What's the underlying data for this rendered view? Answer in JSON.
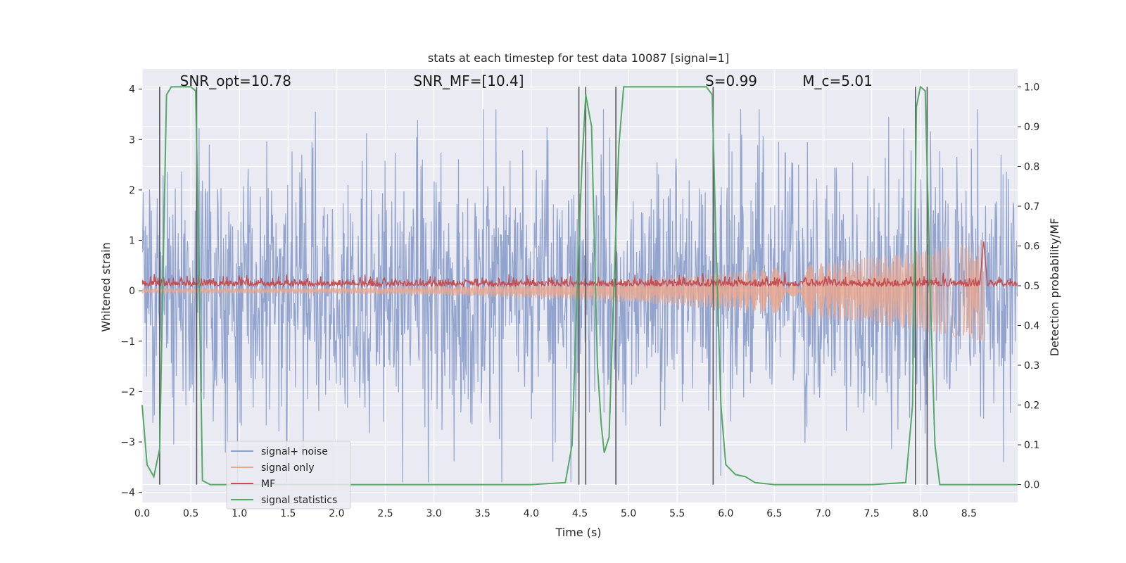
{
  "chart_data": {
    "type": "line",
    "title": "stats at each timestep for test data 10087 [signal=1]",
    "xlabel": "Time (s)",
    "ylabel": "Whitened strain",
    "y2label": "Detection probability/MF",
    "xlim": [
      0,
      9.0
    ],
    "ylim": [
      -4.2,
      4.4
    ],
    "y2lim": [
      -0.045,
      1.045
    ],
    "x_ticks": [
      "0.0",
      "0.5",
      "1.0",
      "1.5",
      "2.0",
      "2.5",
      "3.0",
      "3.5",
      "4.0",
      "4.5",
      "5.0",
      "5.5",
      "6.0",
      "6.5",
      "7.0",
      "7.5",
      "8.0",
      "8.5"
    ],
    "y_ticks": [
      "4",
      "3",
      "2",
      "1",
      "0",
      "−1",
      "−2",
      "−3",
      "−4"
    ],
    "y2_ticks": [
      "1.0",
      "0.9",
      "0.8",
      "0.7",
      "0.6",
      "0.5",
      "0.4",
      "0.3",
      "0.2",
      "0.1",
      "0.0"
    ],
    "annotations": [
      {
        "id": "snr-opt",
        "text": "SNR_opt=10.78",
        "x": 0.2
      },
      {
        "id": "snr-mf",
        "text": "SNR_MF=[10.4]",
        "x": 2.6
      },
      {
        "id": "s-stat",
        "text": "S=0.99",
        "x": 5.6
      },
      {
        "id": "mc",
        "text": "M_c=5.01",
        "x": 6.6
      }
    ],
    "legend_position": "lower-left",
    "grid": true,
    "series": [
      {
        "name": "signal+ noise",
        "color": "#8da0cb",
        "axis": "left",
        "amplitude_range": [
          -3.8,
          3.6
        ]
      },
      {
        "name": "signal only",
        "color": "#e8a78f",
        "axis": "left",
        "x_start": 0.0,
        "x_end": 8.65,
        "envelope_start": 0.05,
        "envelope_end": 1.0
      },
      {
        "name": "MF",
        "color": "#c44e52",
        "axis": "left",
        "baseline": 0.12,
        "spike_x": 8.65,
        "spike_y": 1.0
      },
      {
        "name": "signal statistics",
        "color": "#55a868",
        "axis": "right",
        "x": [
          0.0,
          0.05,
          0.12,
          0.18,
          0.25,
          0.3,
          0.35,
          0.45,
          0.5,
          0.55,
          0.58,
          0.62,
          0.7,
          1.0,
          2.0,
          3.0,
          4.0,
          4.35,
          4.42,
          4.48,
          4.52,
          4.56,
          4.62,
          4.68,
          4.72,
          4.75,
          4.8,
          4.85,
          4.9,
          4.95,
          5.0,
          5.5,
          5.8,
          5.86,
          5.9,
          5.95,
          6.0,
          6.1,
          6.2,
          6.3,
          6.5,
          7.0,
          7.5,
          7.85,
          7.92,
          7.96,
          8.0,
          8.05,
          8.1,
          8.15,
          8.2,
          8.5,
          9.0
        ],
        "y": [
          0.2,
          0.05,
          0.02,
          0.09,
          0.98,
          1.0,
          1.0,
          1.0,
          1.0,
          0.99,
          0.6,
          0.01,
          0.0,
          0.0,
          0.0,
          0.0,
          0.0,
          0.005,
          0.1,
          0.55,
          0.8,
          0.98,
          0.9,
          0.3,
          0.15,
          0.08,
          0.12,
          0.5,
          0.85,
          1.0,
          1.0,
          1.0,
          1.0,
          0.98,
          0.6,
          0.2,
          0.05,
          0.025,
          0.02,
          0.005,
          0.0,
          0.0,
          0.0,
          0.005,
          0.2,
          0.95,
          1.0,
          0.99,
          0.5,
          0.1,
          0.0,
          0.0,
          0.0
        ]
      }
    ],
    "vertical_markers": [
      {
        "x": 0.18,
        "y2_top": 1.0
      },
      {
        "x": 0.56,
        "y2_top": 1.0
      },
      {
        "x": 4.49,
        "y2_top": 1.0
      },
      {
        "x": 4.56,
        "y2_top": 1.0
      },
      {
        "x": 4.87,
        "y2_top": 1.0
      },
      {
        "x": 5.87,
        "y2_top": 1.0
      },
      {
        "x": 7.95,
        "y2_top": 1.0
      },
      {
        "x": 8.07,
        "y2_top": 1.0
      }
    ]
  }
}
